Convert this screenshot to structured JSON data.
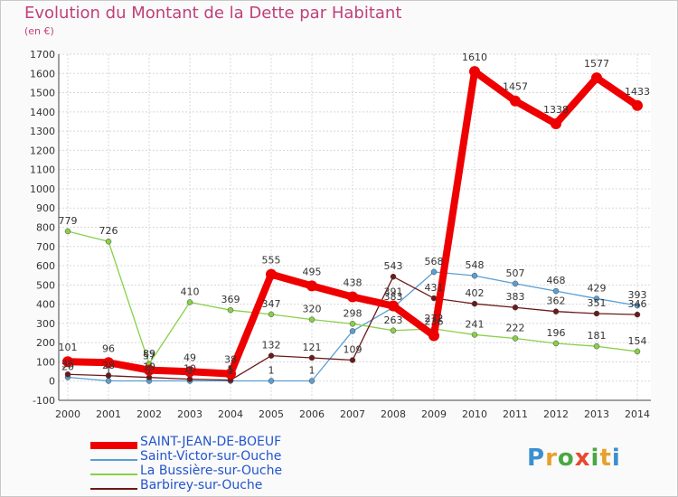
{
  "title": "Evolution du Montant de la Dette par Habitant",
  "subtitle": "(en €)",
  "logo_text": "Proxiti",
  "chart_data": {
    "type": "line",
    "x": [
      "2000",
      "2001",
      "2002",
      "2003",
      "2004",
      "2005",
      "2006",
      "2007",
      "2008",
      "2009",
      "2010",
      "2011",
      "2012",
      "2013",
      "2014"
    ],
    "ylim": [
      -100,
      1700
    ],
    "yticks": [
      -100,
      0,
      100,
      200,
      300,
      400,
      500,
      600,
      700,
      800,
      900,
      1000,
      1100,
      1200,
      1300,
      1400,
      1500,
      1600,
      1700
    ],
    "grid": true,
    "legend_position": "bottom-left",
    "series": [
      {
        "name": "SAINT-JEAN-DE-BOEUF",
        "color": "#ee0000",
        "values": [
          101,
          96,
          57,
          49,
          38,
          555,
          495,
          438,
          391,
          236,
          1610,
          1457,
          1338,
          1577,
          1433
        ]
      },
      {
        "name": "Saint-Victor-sur-Ouche",
        "color": "#5a9fd4",
        "values": [
          20,
          1,
          1,
          1,
          1,
          1,
          1,
          260,
          383,
          568,
          548,
          507,
          468,
          429,
          393
        ]
      },
      {
        "name": "La Bussière-sur-Ouche",
        "color": "#88d048",
        "values": [
          779,
          726,
          89,
          410,
          369,
          347,
          320,
          298,
          263,
          272,
          241,
          222,
          196,
          181,
          154
        ]
      },
      {
        "name": "Barbirey-sur-Ouche",
        "color": "#6b1a1a",
        "values": [
          35,
          28,
          19,
          10,
          5,
          132,
          121,
          109,
          543,
          431,
          402,
          383,
          362,
          351,
          346
        ]
      }
    ],
    "data_labels": [
      [
        "101",
        "96",
        "57",
        "49",
        "38",
        "555",
        "495",
        "438",
        "391",
        "236",
        "1610",
        "1457",
        "1338",
        "1577",
        "1433"
      ],
      [
        "20",
        "1",
        "1",
        "1",
        "1",
        "1",
        "1",
        "",
        "383",
        "568",
        "548",
        "507",
        "468",
        "429",
        "393"
      ],
      [
        "779",
        "726",
        "89",
        "410",
        "369",
        "347",
        "320",
        "298",
        "263",
        "272",
        "241",
        "222",
        "196",
        "181",
        "154"
      ],
      [
        "35",
        "28",
        "19",
        "10",
        "5",
        "132",
        "121",
        "109",
        "543",
        "431",
        "402",
        "383",
        "362",
        "351",
        "346"
      ]
    ]
  }
}
